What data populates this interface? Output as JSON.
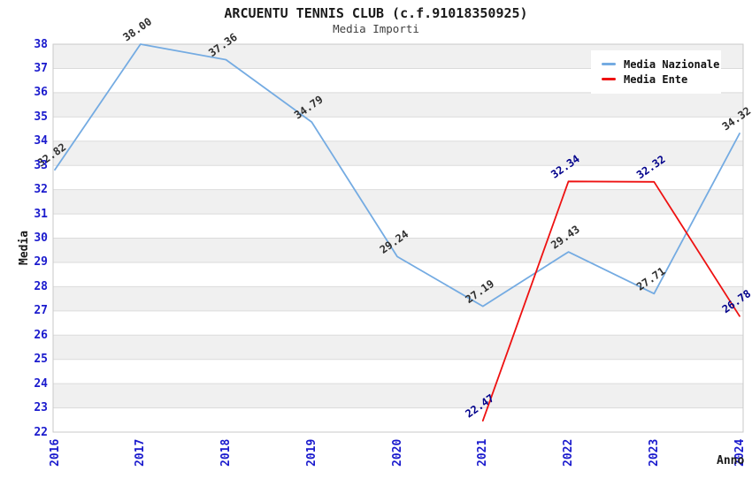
{
  "chart_data": {
    "type": "line",
    "title": "ARCUENTU TENNIS CLUB (c.f.91018350925)",
    "subtitle": "Media Importi",
    "xlabel": "Anno",
    "ylabel": "Media",
    "categories": [
      "2016",
      "2017",
      "2018",
      "2019",
      "2020",
      "2021",
      "2022",
      "2023",
      "2024"
    ],
    "ylim": [
      22,
      38
    ],
    "ytick_step": 1,
    "grid": "horizontal",
    "band_fill": "striped-horizontal",
    "legend_position": "top-right",
    "series": [
      {
        "name": "Media Nazionale",
        "color": "#74abe2",
        "label_color": "#2f2f2f",
        "values": [
          32.82,
          38.0,
          37.36,
          34.79,
          29.24,
          27.19,
          29.43,
          27.71,
          34.32
        ]
      },
      {
        "name": "Media Ente",
        "color": "#ee1111",
        "label_color": "#00008b",
        "values": [
          null,
          null,
          null,
          null,
          null,
          22.47,
          32.34,
          32.32,
          26.78
        ]
      }
    ],
    "colors": {
      "background": "#ffffff",
      "band_gray": "#f0f0f0",
      "gridline": "#dbdbdb",
      "plot_border": "#c9c9c9",
      "tick_label": "#1a1acd",
      "title_text": "#1a1a1a",
      "subtitle_text": "#404040"
    }
  }
}
